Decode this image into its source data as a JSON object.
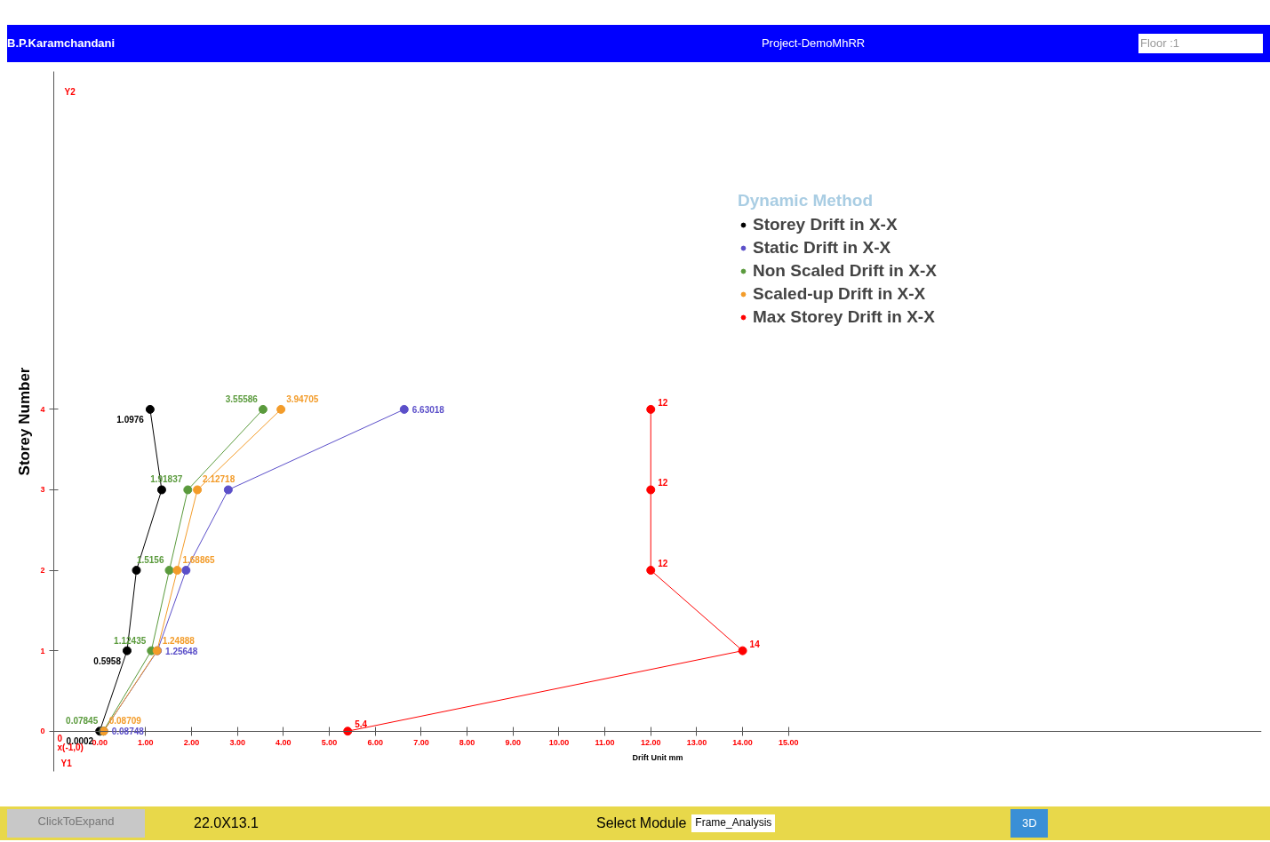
{
  "chart_data": {
    "type": "line",
    "xlabel": "Drift Unit mm",
    "ylabel": "Storey Number",
    "legend_title": "Dynamic Method",
    "x": [
      0,
      1,
      2,
      3,
      4
    ],
    "series": [
      {
        "name": "Storey Drift in X-X",
        "color": "#000000",
        "values": [
          0.0002,
          0.5958,
          0.8,
          1.35,
          1.0976
        ],
        "value_labels": [
          "0.0002",
          "0.5958",
          null,
          null,
          "1.0976"
        ]
      },
      {
        "name": "Static Drift in X-X",
        "color": "#5b4fc9",
        "values": [
          0.08748,
          1.25648,
          1.88,
          2.8,
          6.63018
        ],
        "value_labels": [
          "0.08748",
          "1.25648",
          null,
          null,
          "6.63018"
        ]
      },
      {
        "name": "Non Scaled Drift in X-X",
        "color": "#5a9a3c",
        "values": [
          0.07845,
          1.12435,
          1.5156,
          1.91837,
          3.55586
        ],
        "value_labels": [
          "0.07845",
          "1.12435",
          "1.5156",
          "1.91837",
          "3.55586"
        ]
      },
      {
        "name": "Scaled-up Drift in X-X",
        "color": "#f39c2a",
        "values": [
          0.08709,
          1.24888,
          1.68865,
          2.12718,
          3.94705
        ],
        "value_labels": [
          "0.08709",
          "1.24888",
          "1.68865",
          "2.12718",
          "3.94705"
        ]
      },
      {
        "name": "Max Storey Drift in X-X",
        "color": "#ff0000",
        "values": [
          5.4,
          14,
          12,
          12,
          12
        ],
        "value_labels": [
          "5.4",
          "14",
          "12",
          "12",
          "12"
        ]
      }
    ],
    "orientation": "horizontal",
    "xlim": [
      -1,
      25.3
    ],
    "ylim": [
      -0.5,
      8.2
    ],
    "xticks": [
      {
        "value": 0,
        "label": "0.00"
      },
      {
        "value": 1,
        "label": "1.00"
      },
      {
        "value": 2,
        "label": "2.00"
      },
      {
        "value": 3,
        "label": "3.00"
      },
      {
        "value": 4,
        "label": "4.00"
      },
      {
        "value": 5,
        "label": "5.00"
      },
      {
        "value": 6,
        "label": "6.00"
      },
      {
        "value": 7,
        "label": "7.00"
      },
      {
        "value": 8,
        "label": "8.00"
      },
      {
        "value": 9,
        "label": "9.00"
      },
      {
        "value": 10,
        "label": "10.00"
      },
      {
        "value": 11,
        "label": "11.00"
      },
      {
        "value": 12,
        "label": "12.00"
      },
      {
        "value": 13,
        "label": "13.00"
      },
      {
        "value": 14,
        "label": "14.00"
      },
      {
        "value": 15,
        "label": "15.00"
      }
    ],
    "yticks": [
      0,
      1,
      2,
      3,
      4
    ],
    "marker": "circle",
    "legend": "right",
    "grid": false,
    "annotations": [
      "B.P.Karamchandani",
      "Project-DemoMhRR",
      "Floor :1",
      "x(-1,0)",
      "0",
      "Y2",
      "Y1",
      "ClickToExpand",
      "22.0X13.1",
      "Select Module",
      "Frame_Analysis",
      "3D"
    ]
  }
}
